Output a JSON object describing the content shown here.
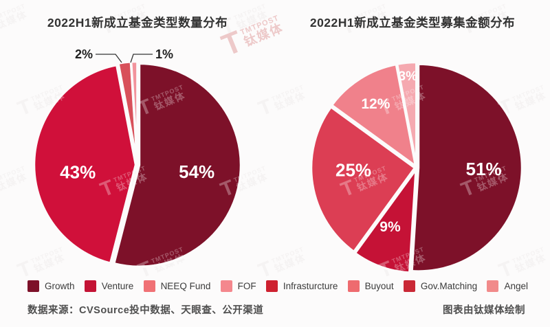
{
  "page": {
    "background": "#FCFBFB"
  },
  "brand": {
    "logo_text": "T",
    "name": "TMTPOST",
    "name_cn": "钛媒体"
  },
  "chart_data": [
    {
      "type": "pie",
      "title": "2022H1新成立基金类型数量分布",
      "legend_position": "bottom-shared",
      "slices": [
        {
          "name": "Growth",
          "label": "54%",
          "value": 54,
          "color": "#7D1129"
        },
        {
          "name": "Venture",
          "label": "43%",
          "value": 43,
          "color": "#D0103A"
        },
        {
          "name": "Gov.Matching",
          "label": "2%",
          "value": 2,
          "color": "#D8505A"
        },
        {
          "name": "NEEQ Fund",
          "label": "1%",
          "value": 1,
          "color": "#F2939C"
        }
      ]
    },
    {
      "type": "pie",
      "title": "2022H1新成立基金类型募集金额分布",
      "legend_position": "bottom-shared",
      "slices": [
        {
          "name": "Growth",
          "label": "51%",
          "value": 51,
          "color": "#7D1129"
        },
        {
          "name": "Venture",
          "label": "9%",
          "value": 9,
          "color": "#C51236"
        },
        {
          "name": "Infrastructure",
          "label": "25%",
          "value": 25,
          "color": "#DC3E54"
        },
        {
          "name": "FOF",
          "label": "12%",
          "value": 12,
          "color": "#F0818B"
        },
        {
          "name": "Angel",
          "label": "3%",
          "value": 3,
          "color": "#F5A9B0"
        }
      ]
    }
  ],
  "legend": {
    "items": [
      {
        "label": "Growth",
        "color": "#7D1129"
      },
      {
        "label": "Venture",
        "color": "#C41335"
      },
      {
        "label": "NEEQ Fund",
        "color": "#F07175"
      },
      {
        "label": "FOF",
        "color": "#F4878D"
      },
      {
        "label": "Infrasturcture",
        "color": "#CE2130"
      },
      {
        "label": "Buyout",
        "color": "#EE6B6F"
      },
      {
        "label": "Gov.Matching",
        "color": "#CA2836"
      },
      {
        "label": "Angel",
        "color": "#F18A8A"
      }
    ]
  },
  "footer": {
    "source": "数据来源：CVSource投中数据、天眼查、公开渠道",
    "credit": "图表由钛媒体绘制"
  }
}
